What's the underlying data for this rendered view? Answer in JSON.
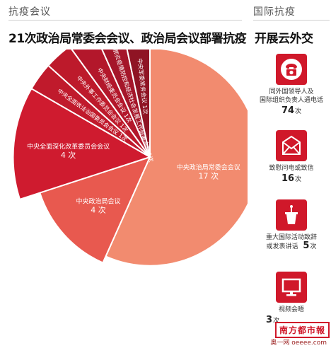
{
  "left_section": {
    "title": "抗疫会议",
    "headline": "21次政治局常委会会议、政治局会议部署抗疫"
  },
  "right_section": {
    "title": "国际抗疫",
    "headline": "开展云外交",
    "items": [
      {
        "label_line1": "同外国领导人及",
        "label_line2": "国际组织负责人通电话",
        "count": "74",
        "unit": "次",
        "icon": "telephone-icon"
      },
      {
        "label_line1": "致慰问电或致信",
        "label_line2": "",
        "count": "16",
        "unit": "次",
        "icon": "envelope-icon"
      },
      {
        "label_line1": "重大国际活动致辞",
        "label_line2": "或发表讲话",
        "count": "5",
        "unit": "次",
        "icon": "podium-icon"
      },
      {
        "label_line1": "视频会晤",
        "label_line2": "",
        "count": "3",
        "unit": "次",
        "icon": "monitor-icon"
      }
    ]
  },
  "chart_data": {
    "type": "pie",
    "title": "21次政治局常委会会议、政治局会议部署抗疫",
    "unit": "次",
    "slices": [
      {
        "label": "中央政治局常委会会议",
        "value": 17,
        "color": "#f28b6f"
      },
      {
        "label": "中央政治局会议",
        "value": 4,
        "color": "#e8594f"
      },
      {
        "label": "中央全面深化改革委员会会议",
        "value": 4,
        "color": "#cf1b2f"
      },
      {
        "label": "中央全面依法治国委员会会议",
        "value": 1,
        "color": "#c01a2c"
      },
      {
        "label": "中央外事工作委员会会议",
        "value": 1,
        "color": "#bd1a2b"
      },
      {
        "label": "中央财经委员会会议",
        "value": 1,
        "color": "#b3172b"
      },
      {
        "label": "统筹推进新冠肺炎疫情防控和经济社会发展工作部署会议",
        "value": 1,
        "color": "#a5162a"
      },
      {
        "label": "中央军委常务会议",
        "value": 1,
        "color": "#8f1424"
      }
    ]
  },
  "stamp": "南方都市報",
  "watermark": "奥一网 oeeee.com"
}
